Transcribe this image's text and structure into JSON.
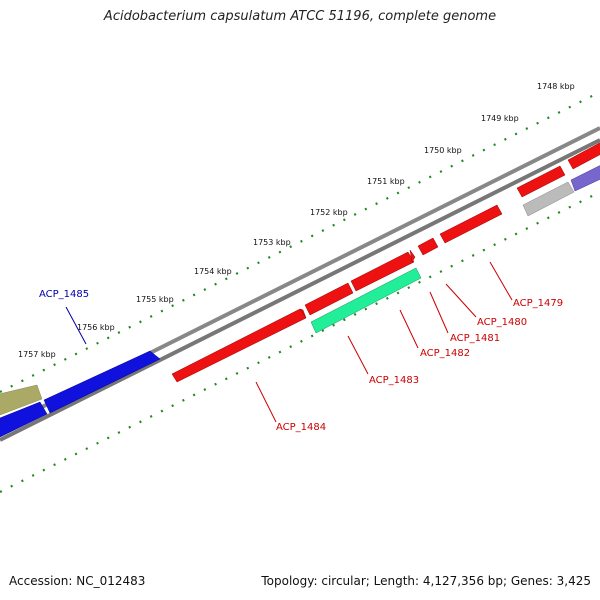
{
  "title": "Acidobacterium capsulatum ATCC 51196, complete genome",
  "footer": {
    "accession": "Accession: NC_012483",
    "topology": "Topology: circular; Length: 4,127,356 bp; Genes: 3,425"
  },
  "colors": {
    "forward_gene": "#ee1111",
    "forward_gene_blue": "#1111dd",
    "forward_gene_olive": "#aaaa66",
    "reverse_gene_green": "#22ee99",
    "reverse_gene_gray": "#bbbbbb",
    "reverse_gene_purple": "#7766cc",
    "backbone": "#777777",
    "scale_ticks": "#228822",
    "label_red": "#cc0000",
    "label_blue": "#0000aa"
  },
  "scale_labels": [
    {
      "text": "1748 kbp"
    },
    {
      "text": "1749 kbp"
    },
    {
      "text": "1750 kbp"
    },
    {
      "text": "1751 kbp"
    },
    {
      "text": "1752 kbp"
    },
    {
      "text": "1753 kbp"
    },
    {
      "text": "1754 kbp"
    },
    {
      "text": "1755 kbp"
    },
    {
      "text": "1756 kbp"
    },
    {
      "text": "1757 kbp"
    }
  ],
  "gene_labels": [
    {
      "text": "ACP_1479",
      "color": "#cc0000"
    },
    {
      "text": "ACP_1480",
      "color": "#cc0000"
    },
    {
      "text": "ACP_1481",
      "color": "#cc0000"
    },
    {
      "text": "ACP_1482",
      "color": "#cc0000"
    },
    {
      "text": "ACP_1483",
      "color": "#cc0000"
    },
    {
      "text": "ACP_1484",
      "color": "#cc0000"
    },
    {
      "text": "ACP_1485",
      "color": "#0000aa"
    }
  ]
}
